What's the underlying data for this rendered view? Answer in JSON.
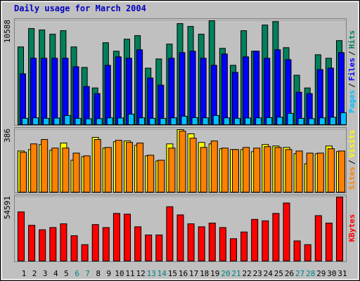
{
  "title": "Daily usage for March 2004",
  "chart_data": [
    {
      "type": "bar",
      "legend_separator": "/",
      "ylim": [
        0,
        10588
      ],
      "yticks": [
        10588
      ],
      "grid": true,
      "series": [
        {
          "name": "Hits",
          "color": "#00805c",
          "values": [
            7920,
            9792,
            9648,
            9216,
            9576,
            7920,
            5832,
            3744,
            8352,
            7488,
            8712,
            9072,
            5760,
            6696,
            8208,
            10296,
            10008,
            9216,
            10588,
            7776,
            6048,
            9576,
            7488,
            10152,
            10500,
            7848,
            5040,
            3744,
            7128,
            6768,
            8568
          ]
        },
        {
          "name": "Files",
          "color": "#0000ff",
          "values": [
            5184,
            6768,
            6768,
            6768,
            6768,
            5904,
            3888,
            3168,
            6048,
            6912,
            6768,
            7632,
            4752,
            4032,
            6768,
            7344,
            7488,
            6768,
            6048,
            7200,
            5328,
            6912,
            7488,
            6768,
            7632,
            6624,
            3312,
            3168,
            5616,
            5760,
            7344
          ]
        },
        {
          "name": "Pages",
          "color": "#00c0ff",
          "values": [
            648,
            700,
            648,
            680,
            936,
            648,
            600,
            620,
            700,
            690,
            1080,
            700,
            648,
            640,
            700,
            864,
            720,
            700,
            936,
            700,
            648,
            690,
            700,
            720,
            760,
            1152,
            648,
            620,
            700,
            760,
            1224
          ]
        }
      ]
    },
    {
      "type": "bar",
      "legend_separator": "/",
      "ylim": [
        0,
        386
      ],
      "yticks": [
        386
      ],
      "grid": true,
      "series": [
        {
          "name": "Visits",
          "color": "#ffff00",
          "values": [
            254,
            263,
            294,
            259,
            303,
            197,
            219,
            338,
            272,
            311,
            316,
            289,
            224,
            193,
            298,
            386,
            360,
            307,
            298,
            268,
            263,
            263,
            250,
            294,
            285,
            276,
            237,
            175,
            237,
            285,
            250
          ]
        },
        {
          "name": "Sites",
          "color": "#ff8000",
          "values": [
            246,
            298,
            325,
            272,
            272,
            241,
            224,
            325,
            276,
            320,
            307,
            303,
            228,
            197,
            272,
            377,
            333,
            276,
            316,
            272,
            263,
            276,
            272,
            281,
            276,
            263,
            254,
            241,
            241,
            268,
            254
          ]
        }
      ]
    },
    {
      "type": "bar",
      "ylim": [
        0,
        54591
      ],
      "yticks": [
        54591
      ],
      "grid": true,
      "categories": [
        "1",
        "2",
        "3",
        "4",
        "5",
        "6",
        "7",
        "8",
        "9",
        "10",
        "11",
        "12",
        "13",
        "14",
        "15",
        "16",
        "17",
        "18",
        "19",
        "20",
        "21",
        "22",
        "23",
        "24",
        "25",
        "26",
        "27",
        "28",
        "29",
        "30",
        "31"
      ],
      "category_colors": [
        "#000000",
        "#000000",
        "#000000",
        "#000000",
        "#000000",
        "#008080",
        "#008080",
        "#000000",
        "#000000",
        "#000000",
        "#000000",
        "#000000",
        "#008080",
        "#008080",
        "#000000",
        "#000000",
        "#000000",
        "#000000",
        "#000000",
        "#008080",
        "#008080",
        "#000000",
        "#000000",
        "#000000",
        "#000000",
        "#000000",
        "#008080",
        "#008080",
        "#000000",
        "#000000",
        "#000000"
      ],
      "series": [
        {
          "name": "KBytes",
          "color": "#ff0000",
          "values": [
            41897,
            30470,
            26662,
            28566,
            31740,
            21583,
            13966,
            31105,
            28566,
            40627,
            39992,
            29201,
            22218,
            22218,
            46340,
            39358,
            31740,
            29201,
            32375,
            28566,
            19044,
            24757,
            35549,
            34279,
            40627,
            49514,
            17140,
            13966,
            38723,
            32375,
            54591
          ]
        }
      ]
    }
  ]
}
